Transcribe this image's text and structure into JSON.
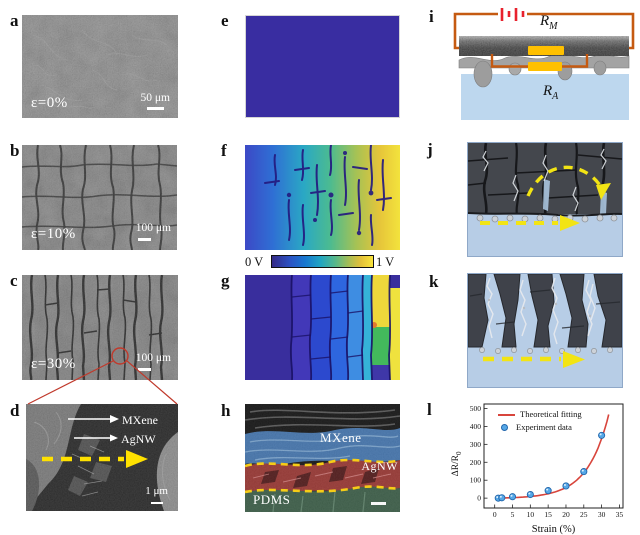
{
  "figure": {
    "colorbar": {
      "min_label": "0 V",
      "max_label": "1 V"
    },
    "panels": {
      "a": {
        "letter": "a",
        "strain_label": "ε=0%",
        "scale_label": "50 μm"
      },
      "b": {
        "letter": "b",
        "strain_label": "ε=10%",
        "scale_label": "100 μm"
      },
      "c": {
        "letter": "c",
        "strain_label": "ε=30%",
        "scale_label": "100 μm"
      },
      "d": {
        "letter": "d",
        "mxene_label": "MXene",
        "agnw_label": "AgNW",
        "scale_label": "1 μm"
      },
      "e": {
        "letter": "e"
      },
      "f": {
        "letter": "f"
      },
      "g": {
        "letter": "g"
      },
      "h": {
        "letter": "h",
        "mxene_label": "MXene",
        "agnw_label": "AgNW",
        "pdms_label": "PDMS"
      },
      "i": {
        "letter": "i",
        "r_m": {
          "base": "R",
          "sub": "M"
        },
        "r_a": {
          "base": "R",
          "sub": "A"
        }
      },
      "j": {
        "letter": "j"
      },
      "k": {
        "letter": "k"
      },
      "l": {
        "letter": "l"
      }
    },
    "colors": {
      "voltage_min": "#352a87",
      "voltage_max": "#f9e43c",
      "uniform_map_blue": "#392da1",
      "wire_orange": "#c55a11",
      "battery_red": "#e8212d",
      "resistor_yellow": "#ffc000",
      "substrate_blue": "#bdd7ee",
      "arrow_yellow": "#f2e414",
      "fit_line_red": "#d8453c",
      "data_point_blue": "#55a7e6"
    }
  },
  "chart_data": {
    "type": "scatter",
    "title": "",
    "xlabel": "Strain (%)",
    "ylabel": "ΔR/R",
    "ylabel_sub": "0",
    "xlim": [
      0,
      35
    ],
    "ylim": [
      0,
      500
    ],
    "draw_xlim": [
      -3,
      36
    ],
    "draw_ylim": [
      -55,
      525
    ],
    "xticks": [
      0,
      5,
      10,
      15,
      20,
      25,
      30,
      35
    ],
    "yticks": [
      0,
      100,
      200,
      300,
      400,
      500
    ],
    "grid": false,
    "legend_position": "top-left",
    "series": [
      {
        "name": "Theoretical fitting",
        "type": "line",
        "color": "#d8453c",
        "fit": {
          "model": "y = a*(exp(b*x)-1)",
          "a": 2.1,
          "b": 0.169,
          "x_min": 0.5,
          "x_max": 32
        }
      },
      {
        "name": "Experiment data",
        "type": "scatter",
        "color": "#55a7e6",
        "x": [
          1,
          2,
          5,
          10,
          15,
          20,
          25,
          30
        ],
        "y": [
          0,
          2,
          8,
          20,
          42,
          68,
          148,
          350
        ]
      }
    ]
  }
}
